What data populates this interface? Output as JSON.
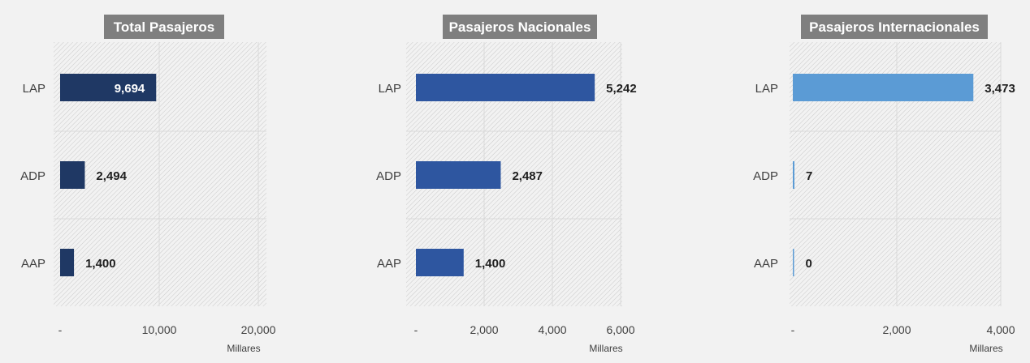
{
  "background_color": "#f2f2f2",
  "colors": {
    "title_bg": "#7f7f7f",
    "title_text": "#ffffff",
    "grid": "#d9d9d9",
    "hatch": "#bfbfbf",
    "label_text": "#404040",
    "value_text": "#1f1f1f"
  },
  "chart_data": [
    {
      "type": "bar",
      "orientation": "horizontal",
      "title": "Total Pasajeros",
      "categories": [
        "LAP",
        "ADP",
        "AAP"
      ],
      "values": [
        9694,
        2494,
        1400
      ],
      "value_labels": [
        "9,694",
        "2,494",
        "1,400"
      ],
      "value_label_inside": [
        true,
        false,
        false
      ],
      "xlabel": "Millares",
      "xlim": [
        0,
        20000
      ],
      "xticks": [
        0,
        10000,
        20000
      ],
      "xtick_labels": [
        "-",
        "10,000",
        "20,000"
      ],
      "bar_color": "#1f3864",
      "grid": true
    },
    {
      "type": "bar",
      "orientation": "horizontal",
      "title": "Pasajeros Nacionales",
      "categories": [
        "LAP",
        "ADP",
        "AAP"
      ],
      "values": [
        5242,
        2487,
        1400
      ],
      "value_labels": [
        "5,242",
        "2,487",
        "1,400"
      ],
      "value_label_inside": [
        false,
        false,
        false
      ],
      "xlabel": "Millares",
      "xlim": [
        0,
        6000
      ],
      "xticks": [
        0,
        2000,
        4000,
        6000
      ],
      "xtick_labels": [
        "-",
        "2,000",
        "4,000",
        "6,000"
      ],
      "bar_color": "#2e56a0",
      "grid": true
    },
    {
      "type": "bar",
      "orientation": "horizontal",
      "title": "Pasajeros Internacionales",
      "categories": [
        "LAP",
        "ADP",
        "AAP"
      ],
      "values": [
        3473,
        7,
        0
      ],
      "value_labels": [
        "3,473",
        "7",
        "0"
      ],
      "value_label_inside": [
        false,
        false,
        false
      ],
      "xlabel": "Millares",
      "xlim": [
        0,
        4000
      ],
      "xticks": [
        0,
        2000,
        4000
      ],
      "xtick_labels": [
        "-",
        "2,000",
        "4,000"
      ],
      "bar_color": "#5b9bd5",
      "grid": true
    }
  ]
}
